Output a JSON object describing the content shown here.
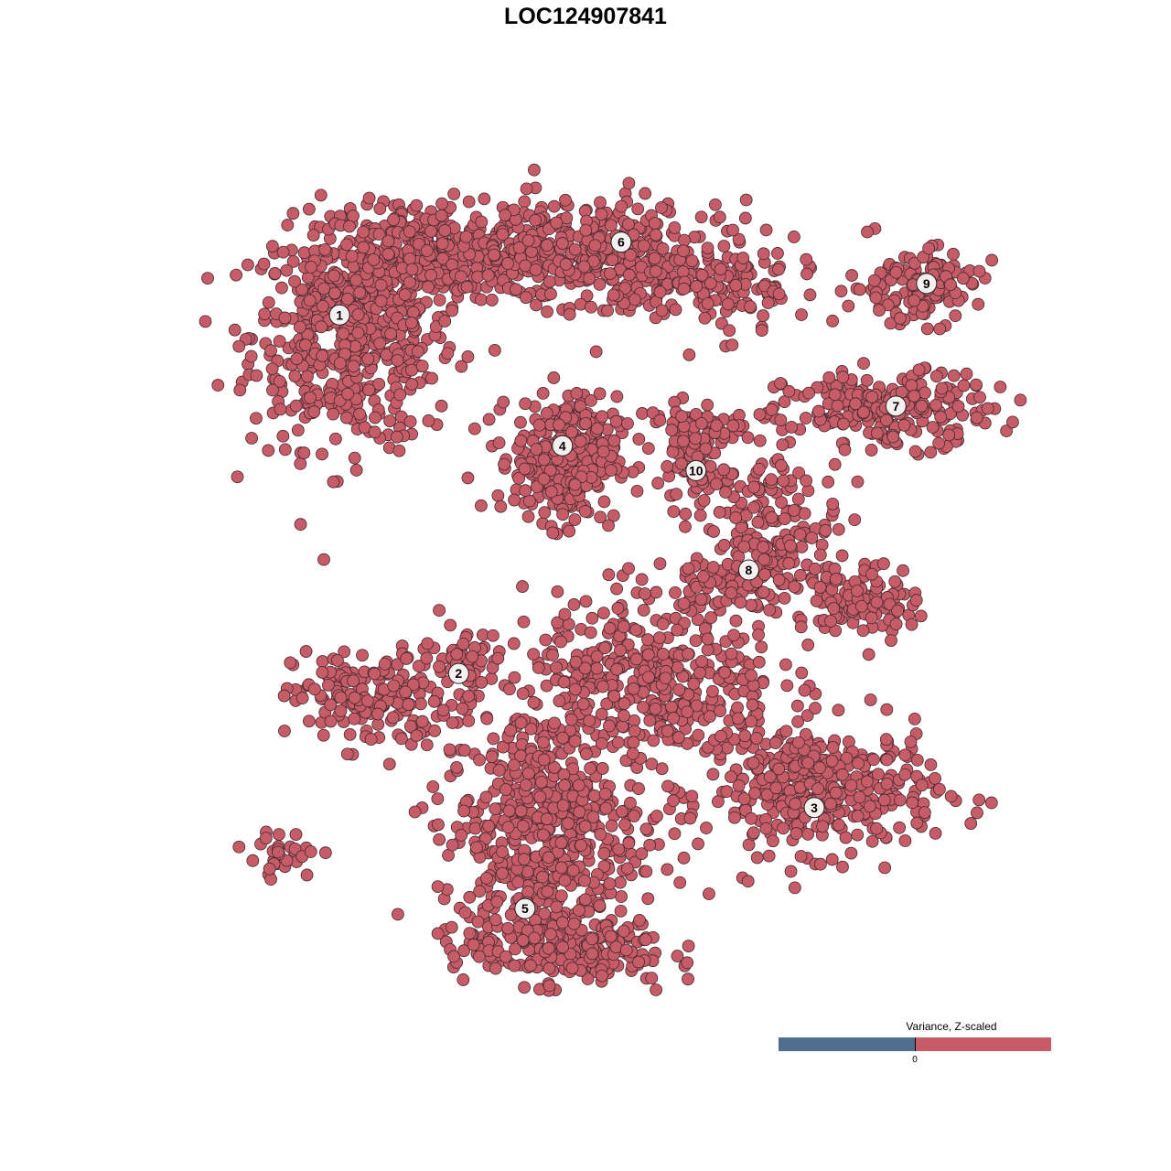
{
  "chart_data": {
    "type": "scatter",
    "title": "LOC124907841",
    "xlabel": "",
    "ylabel": "",
    "xlim": [
      -50,
      50
    ],
    "ylim": [
      -50,
      50
    ],
    "grid": false,
    "point_color": "#C55C67",
    "point_edge_color": "#4a2a30",
    "clusters": [
      {
        "label": "1",
        "center": [
          -31.6,
          32.4
        ],
        "blobs": [
          [
            -30,
            30,
            8,
            9,
            550
          ],
          [
            -22,
            40,
            8,
            4,
            220
          ]
        ]
      },
      {
        "label": "2",
        "center": [
          -17.6,
          -10.9
        ],
        "blobs": [
          [
            -28,
            -14,
            6,
            4,
            170
          ],
          [
            -17,
            -10,
            3,
            3,
            60
          ]
        ]
      },
      {
        "label": "3",
        "center": [
          24.2,
          -27.1
        ],
        "blobs": [
          [
            25,
            -25,
            9,
            5,
            380
          ]
        ]
      },
      {
        "label": "4",
        "center": [
          -5.4,
          16.6
        ],
        "blobs": [
          [
            -5,
            15,
            4,
            5,
            320
          ]
        ]
      },
      {
        "label": "5",
        "center": [
          -9.8,
          -39.3
        ],
        "blobs": [
          [
            -8,
            -30,
            8,
            10,
            520
          ],
          [
            -5,
            -44,
            8,
            3,
            220
          ],
          [
            5,
            -12,
            10,
            7,
            420
          ]
        ]
      },
      {
        "label": "6",
        "center": [
          1.5,
          41.2
        ],
        "blobs": [
          [
            -5,
            40,
            12,
            4,
            420
          ],
          [
            12,
            36,
            8,
            4,
            160
          ]
        ]
      },
      {
        "label": "7",
        "center": [
          33.8,
          21.4
        ],
        "blobs": [
          [
            33,
            21,
            8,
            3,
            220
          ]
        ]
      },
      {
        "label": "8",
        "center": [
          16.5,
          1.6
        ],
        "blobs": [
          [
            20,
            6,
            5,
            6,
            160
          ],
          [
            30,
            -2,
            4,
            3,
            110
          ],
          [
            13,
            0,
            5,
            2,
            60
          ]
        ]
      },
      {
        "label": "9",
        "center": [
          37.4,
          36.2
        ],
        "blobs": [
          [
            36,
            36,
            5,
            3,
            130
          ]
        ]
      },
      {
        "label": "10",
        "center": [
          10.3,
          13.6
        ],
        "blobs": [
          [
            10,
            14,
            3,
            4,
            90
          ],
          [
            12,
            19,
            6,
            1.5,
            60
          ]
        ]
      }
    ],
    "outlier_blobs": [
      [
        -38,
        -33,
        3,
        2,
        30
      ]
    ],
    "legend": {
      "title": "Variance, Z-scaled",
      "tick_label": "0",
      "low_color": "#506E8E",
      "high_color": "#C55C67",
      "placement": "bottom-right"
    }
  }
}
